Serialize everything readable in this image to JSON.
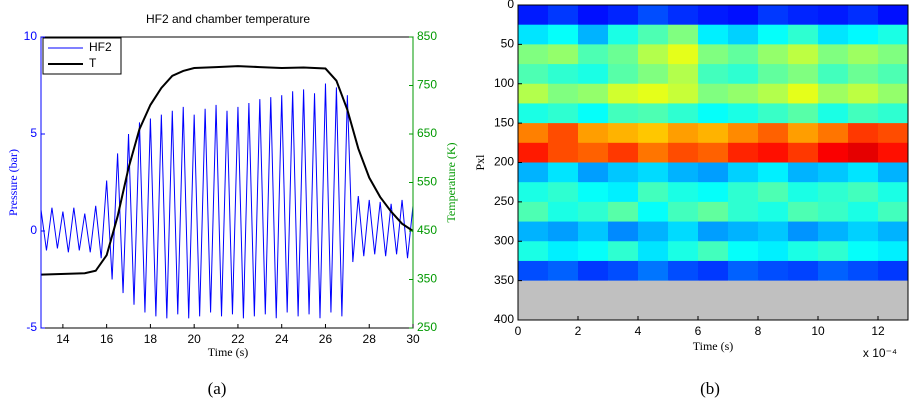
{
  "chart_data": [
    {
      "type": "line",
      "title": "HF2 and chamber temperature",
      "caption": "(a)",
      "xlabel": "Time (s)",
      "ylabel": "Pressure (bar)",
      "y2label": "Temperature (K)",
      "y_axis_color": "#0000ff",
      "y2_axis_color": "#009900",
      "xlim": [
        13,
        30
      ],
      "xticks": [
        14,
        16,
        18,
        20,
        22,
        24,
        26,
        28,
        30
      ],
      "ylim": [
        -5,
        10
      ],
      "yticks": [
        -5,
        0,
        5,
        10
      ],
      "y2lim": [
        250,
        850
      ],
      "y2ticks": [
        250,
        350,
        450,
        550,
        650,
        750,
        850
      ],
      "legend": "upper left",
      "series": [
        {
          "name": "HF2",
          "color": "#0000ff",
          "x": [
            13,
            13.25,
            13.5,
            13.75,
            14,
            14.25,
            14.5,
            14.75,
            15,
            15.25,
            15.5,
            15.75,
            16,
            16.25,
            16.5,
            16.75,
            17,
            17.25,
            17.5,
            17.75,
            18,
            18.25,
            18.5,
            18.75,
            19,
            19.25,
            19.5,
            19.75,
            20,
            20.25,
            20.5,
            20.75,
            21,
            21.25,
            21.5,
            21.75,
            22,
            22.25,
            22.5,
            22.75,
            23,
            23.25,
            23.5,
            23.75,
            24,
            24.25,
            24.5,
            24.75,
            25,
            25.25,
            25.5,
            25.75,
            26,
            26.25,
            26.5,
            26.75,
            27,
            27.25,
            27.5,
            27.75,
            28,
            28.25,
            28.5,
            28.75,
            29,
            29.25,
            29.5,
            29.75,
            30
          ],
          "values": [
            1.1,
            -1.0,
            1.2,
            -0.9,
            1.0,
            -1.1,
            1.2,
            -1.0,
            0.9,
            -1.1,
            1.3,
            -1.4,
            2.6,
            -2.5,
            4.0,
            -3.2,
            5.0,
            -3.8,
            5.6,
            -4.2,
            5.8,
            -4.4,
            6.0,
            -4.5,
            6.2,
            -4.3,
            6.4,
            -4.5,
            6.0,
            -4.4,
            6.3,
            -4.2,
            6.5,
            -4.4,
            6.2,
            -4.3,
            6.4,
            -4.5,
            6.6,
            -4.4,
            6.8,
            -4.3,
            6.9,
            -4.5,
            7.0,
            -4.2,
            7.2,
            -4.4,
            7.3,
            -4.3,
            7.1,
            -4.5,
            7.6,
            -4.2,
            7.4,
            -4.4,
            7.0,
            -1.6,
            1.8,
            -1.3,
            1.6,
            -1.2,
            1.5,
            -1.3,
            1.4,
            -1.2,
            1.6,
            -1.4,
            1.3
          ]
        },
        {
          "name": "T",
          "color": "#000000",
          "axis": "y2",
          "x": [
            13,
            15,
            15.5,
            16,
            16.5,
            17,
            17.5,
            18,
            18.5,
            19,
            19.5,
            20,
            21,
            22,
            23,
            24,
            25,
            26,
            26.5,
            27,
            27.5,
            28,
            28.5,
            29,
            29.5,
            30
          ],
          "values": [
            360,
            363,
            368,
            400,
            480,
            580,
            660,
            710,
            745,
            770,
            780,
            786,
            788,
            790,
            788,
            786,
            787,
            785,
            760,
            700,
            620,
            560,
            520,
            490,
            465,
            450
          ]
        }
      ]
    },
    {
      "type": "heatmap",
      "caption": "(b)",
      "xlabel": "Time (s)",
      "ylabel": "Pxl",
      "x_multiplier": "x 10⁻⁴",
      "colormap": "jet",
      "clim": [
        0,
        1
      ],
      "null_color": "#c0c0c0",
      "xlim": [
        0,
        13
      ],
      "xticks": [
        0,
        2,
        4,
        6,
        8,
        10,
        12
      ],
      "ylim": [
        400,
        0
      ],
      "yticks": [
        0,
        50,
        100,
        150,
        200,
        250,
        300,
        350,
        400
      ],
      "x_edges": [
        0,
        1,
        2,
        3,
        4,
        5,
        6,
        7,
        8,
        9,
        10,
        11,
        12,
        13
      ],
      "y_edges": [
        0,
        25,
        50,
        75,
        100,
        125,
        150,
        175,
        200,
        225,
        250,
        275,
        300,
        325,
        350,
        375,
        400
      ],
      "z": [
        [
          0.15,
          0.18,
          0.14,
          0.16,
          0.2,
          0.17,
          0.15,
          0.14,
          0.18,
          0.16,
          0.15,
          0.17,
          0.14
        ],
        [
          0.35,
          0.38,
          0.3,
          0.4,
          0.45,
          0.5,
          0.36,
          0.33,
          0.38,
          0.42,
          0.35,
          0.37,
          0.4
        ],
        [
          0.5,
          0.52,
          0.45,
          0.48,
          0.55,
          0.6,
          0.5,
          0.47,
          0.52,
          0.56,
          0.5,
          0.53,
          0.5
        ],
        [
          0.45,
          0.42,
          0.4,
          0.46,
          0.5,
          0.55,
          0.44,
          0.42,
          0.47,
          0.5,
          0.44,
          0.48,
          0.45
        ],
        [
          0.55,
          0.5,
          0.52,
          0.58,
          0.6,
          0.57,
          0.5,
          0.52,
          0.55,
          0.6,
          0.53,
          0.56,
          0.52
        ],
        [
          0.4,
          0.42,
          0.38,
          0.44,
          0.45,
          0.42,
          0.38,
          0.4,
          0.43,
          0.46,
          0.4,
          0.44,
          0.42
        ],
        [
          0.75,
          0.8,
          0.72,
          0.7,
          0.68,
          0.72,
          0.7,
          0.74,
          0.78,
          0.72,
          0.76,
          0.82,
          0.8
        ],
        [
          0.85,
          0.8,
          0.78,
          0.82,
          0.76,
          0.8,
          0.78,
          0.84,
          0.86,
          0.82,
          0.88,
          0.9,
          0.86
        ],
        [
          0.3,
          0.35,
          0.28,
          0.32,
          0.34,
          0.3,
          0.28,
          0.33,
          0.36,
          0.3,
          0.32,
          0.35,
          0.3
        ],
        [
          0.4,
          0.42,
          0.38,
          0.36,
          0.44,
          0.4,
          0.38,
          0.42,
          0.45,
          0.4,
          0.42,
          0.44,
          0.4
        ],
        [
          0.45,
          0.4,
          0.42,
          0.46,
          0.38,
          0.44,
          0.47,
          0.42,
          0.4,
          0.45,
          0.43,
          0.4,
          0.44
        ],
        [
          0.3,
          0.28,
          0.32,
          0.26,
          0.3,
          0.34,
          0.28,
          0.3,
          0.32,
          0.27,
          0.3,
          0.33,
          0.3
        ],
        [
          0.4,
          0.36,
          0.38,
          0.42,
          0.35,
          0.4,
          0.44,
          0.38,
          0.36,
          0.4,
          0.42,
          0.38,
          0.36
        ],
        [
          0.2,
          0.22,
          0.18,
          0.2,
          0.24,
          0.2,
          0.18,
          0.22,
          0.2,
          0.19,
          0.22,
          0.2,
          0.18
        ],
        [
          null,
          null,
          null,
          null,
          null,
          null,
          null,
          null,
          null,
          null,
          null,
          null,
          null
        ],
        [
          null,
          null,
          null,
          null,
          null,
          null,
          null,
          null,
          null,
          null,
          null,
          null,
          null
        ]
      ]
    }
  ]
}
